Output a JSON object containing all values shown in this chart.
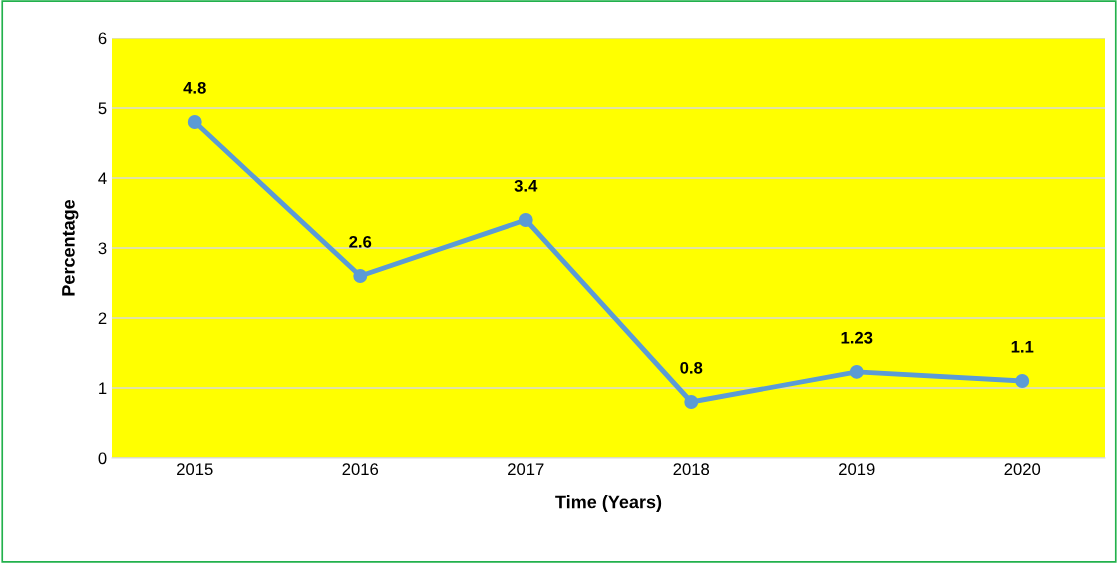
{
  "chart_data": {
    "type": "line",
    "xlabel": "Time (Years)",
    "ylabel": "Percentage",
    "categories": [
      "2015",
      "2016",
      "2017",
      "2018",
      "2019",
      "2020"
    ],
    "series": [
      {
        "color": "#5b9bd5",
        "values": [
          4.8,
          2.6,
          3.4,
          0.8,
          1.23,
          1.1
        ]
      }
    ],
    "ylim": [
      0,
      6
    ],
    "yticks": [
      0,
      1,
      2,
      3,
      4,
      5,
      6
    ],
    "grid": "y",
    "marker": "circle",
    "line_style": "solid",
    "data_labels": true
  }
}
